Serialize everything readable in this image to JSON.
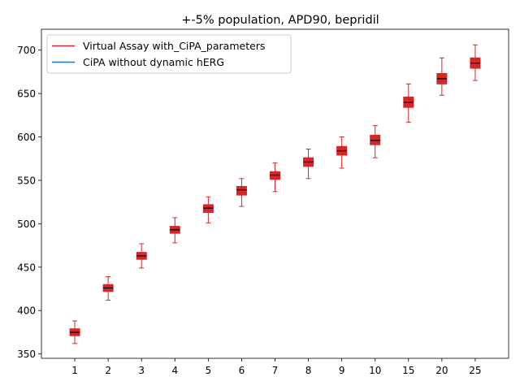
{
  "chart_data": {
    "type": "box",
    "title": "+-5% population, APD90, bepridil",
    "xlabel": "",
    "ylabel": "",
    "categories": [
      "1",
      "2",
      "3",
      "4",
      "5",
      "6",
      "7",
      "8",
      "9",
      "10",
      "15",
      "20",
      "25"
    ],
    "ylim": [
      345,
      724
    ],
    "yticks": [
      350,
      400,
      450,
      500,
      550,
      600,
      650,
      700
    ],
    "grid": false,
    "legend_position": "upper-left",
    "series": [
      {
        "name": "Virtual Assay with_CiPA_parameters",
        "color": "#d62728",
        "boxes": [
          {
            "min": 362,
            "q1": 371,
            "median": 375,
            "q3": 379,
            "max": 388
          },
          {
            "min": 412,
            "q1": 422,
            "median": 426,
            "q3": 430,
            "max": 439
          },
          {
            "min": 449,
            "q1": 459,
            "median": 463,
            "q3": 467,
            "max": 477
          },
          {
            "min": 478,
            "q1": 489,
            "median": 493,
            "q3": 497,
            "max": 507
          },
          {
            "min": 501,
            "q1": 513,
            "median": 518,
            "q3": 522,
            "max": 531
          },
          {
            "min": 520,
            "q1": 533,
            "median": 539,
            "q3": 543,
            "max": 552
          },
          {
            "min": 537,
            "q1": 551,
            "median": 556,
            "q3": 560,
            "max": 570
          },
          {
            "min": 552,
            "q1": 566,
            "median": 571,
            "q3": 576,
            "max": 586
          },
          {
            "min": 564,
            "q1": 579,
            "median": 584,
            "q3": 589,
            "max": 600
          },
          {
            "min": 576,
            "q1": 591,
            "median": 596,
            "q3": 602,
            "max": 613
          },
          {
            "min": 617,
            "q1": 634,
            "median": 640,
            "q3": 646,
            "max": 661
          },
          {
            "min": 648,
            "q1": 661,
            "median": 667,
            "q3": 673,
            "max": 691
          },
          {
            "min": 665,
            "q1": 679,
            "median": 685,
            "q3": 691,
            "max": 706
          }
        ]
      },
      {
        "name": "CiPA without dynamic hERG",
        "color": "#1f77b4",
        "boxes": []
      }
    ]
  }
}
